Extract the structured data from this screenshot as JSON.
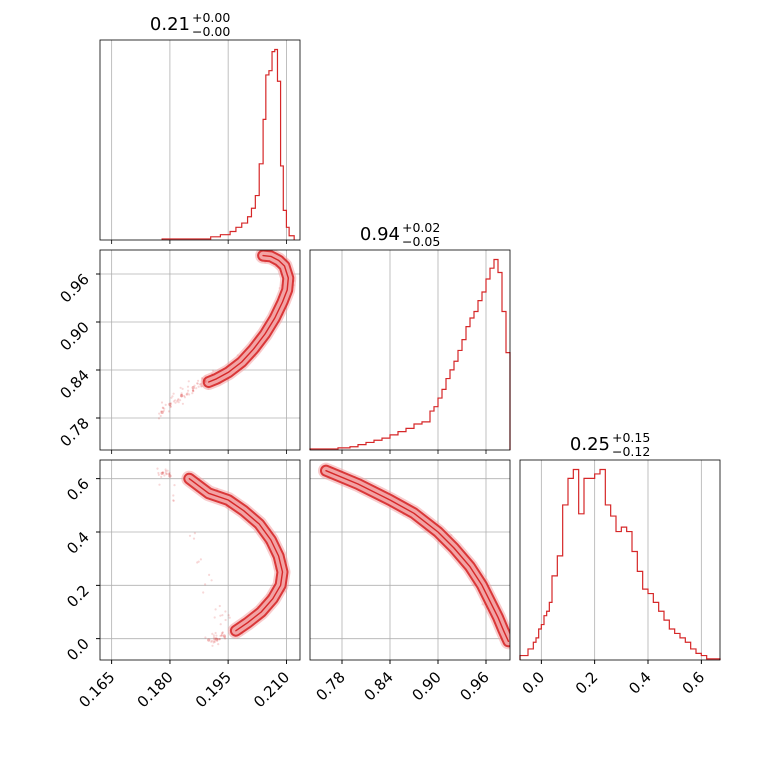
{
  "colors": {
    "accent": "#d62728",
    "fill_light": "#f2a3a4",
    "grid": "#b0b0b0"
  },
  "chart_data": {
    "type": "corner",
    "parameters": [
      {
        "id": "p0",
        "title": {
          "median": "0.21",
          "plus": "+0.00",
          "minus": "−0.00"
        },
        "range": [
          0.162,
          0.2135
        ],
        "ticks": [
          0.165,
          0.18,
          0.195,
          0.21
        ],
        "tick_labels": [
          "0.165",
          "0.180",
          "0.195",
          "0.210"
        ]
      },
      {
        "id": "p1",
        "title": {
          "median": "0.94",
          "plus": "+0.02",
          "minus": "−0.05"
        },
        "range": [
          0.74,
          0.99
        ],
        "ticks": [
          0.78,
          0.84,
          0.9,
          0.96
        ],
        "tick_labels": [
          "0.78",
          "0.84",
          "0.90",
          "0.96"
        ]
      },
      {
        "id": "p2",
        "title": {
          "median": "0.25",
          "plus": "+0.15",
          "minus": "−0.12"
        },
        "range": [
          -0.08,
          0.67
        ],
        "ticks": [
          0.0,
          0.2,
          0.4,
          0.6
        ],
        "tick_labels": [
          "0.0",
          "0.2",
          "0.4",
          "0.6"
        ]
      }
    ],
    "histograms": [
      {
        "param": "p0",
        "edges": [
          0.178,
          0.1905,
          0.193,
          0.1955,
          0.197,
          0.1985,
          0.2,
          0.201,
          0.202,
          0.203,
          0.204,
          0.2047,
          0.2055,
          0.2063,
          0.207,
          0.2077,
          0.2085,
          0.2092,
          0.21,
          0.2107,
          0.212
        ],
        "counts": [
          0.005,
          0.015,
          0.025,
          0.04,
          0.06,
          0.08,
          0.11,
          0.15,
          0.21,
          0.36,
          0.57,
          0.78,
          0.8,
          0.89,
          0.9,
          0.75,
          0.35,
          0.14,
          0.06,
          0.02
        ]
      },
      {
        "param": "p1",
        "edges": [
          0.74,
          0.775,
          0.79,
          0.8,
          0.81,
          0.82,
          0.83,
          0.84,
          0.85,
          0.86,
          0.87,
          0.88,
          0.89,
          0.895,
          0.9,
          0.905,
          0.91,
          0.915,
          0.92,
          0.925,
          0.93,
          0.935,
          0.94,
          0.945,
          0.95,
          0.955,
          0.96,
          0.965,
          0.97,
          0.975,
          0.98,
          0.985,
          0.99
        ],
        "counts": [
          0.005,
          0.01,
          0.015,
          0.025,
          0.035,
          0.045,
          0.055,
          0.07,
          0.085,
          0.1,
          0.12,
          0.13,
          0.18,
          0.2,
          0.24,
          0.28,
          0.33,
          0.37,
          0.41,
          0.46,
          0.51,
          0.57,
          0.61,
          0.64,
          0.69,
          0.73,
          0.79,
          0.84,
          0.88,
          0.82,
          0.64,
          0.45
        ]
      },
      {
        "param": "p2",
        "edges": [
          -0.08,
          -0.05,
          -0.03,
          -0.02,
          -0.01,
          0.0,
          0.01,
          0.02,
          0.03,
          0.04,
          0.06,
          0.08,
          0.1,
          0.12,
          0.14,
          0.16,
          0.18,
          0.2,
          0.22,
          0.24,
          0.26,
          0.28,
          0.3,
          0.32,
          0.34,
          0.36,
          0.38,
          0.4,
          0.42,
          0.44,
          0.46,
          0.48,
          0.5,
          0.52,
          0.54,
          0.56,
          0.58,
          0.6,
          0.62,
          0.67
        ],
        "counts": [
          0.02,
          0.05,
          0.08,
          0.1,
          0.14,
          0.16,
          0.2,
          0.22,
          0.26,
          0.38,
          0.47,
          0.7,
          0.82,
          0.86,
          0.66,
          0.82,
          0.82,
          0.84,
          0.86,
          0.7,
          0.65,
          0.58,
          0.6,
          0.58,
          0.49,
          0.4,
          0.32,
          0.3,
          0.26,
          0.22,
          0.18,
          0.14,
          0.12,
          0.1,
          0.08,
          0.05,
          0.03,
          0.02,
          0.005
        ]
      }
    ],
    "pairs": [
      {
        "x": "p0",
        "y": "p1",
        "band": [
          [
            0.204,
            0.983
          ],
          [
            0.206,
            0.982
          ],
          [
            0.208,
            0.977
          ],
          [
            0.2095,
            0.97
          ],
          [
            0.2105,
            0.955
          ],
          [
            0.2102,
            0.94
          ],
          [
            0.209,
            0.925
          ],
          [
            0.207,
            0.905
          ],
          [
            0.2045,
            0.885
          ],
          [
            0.2015,
            0.866
          ],
          [
            0.1985,
            0.85
          ],
          [
            0.195,
            0.837
          ],
          [
            0.192,
            0.829
          ],
          [
            0.19,
            0.825
          ]
        ],
        "tail": [
          [
            0.189,
            0.826
          ],
          [
            0.186,
            0.818
          ],
          [
            0.183,
            0.808
          ],
          [
            0.18,
            0.797
          ],
          [
            0.178,
            0.787
          ]
        ]
      },
      {
        "x": "p0",
        "y": "p2",
        "band": [
          [
            0.185,
            0.6
          ],
          [
            0.19,
            0.545
          ],
          [
            0.195,
            0.52
          ],
          [
            0.199,
            0.48
          ],
          [
            0.203,
            0.43
          ],
          [
            0.206,
            0.37
          ],
          [
            0.208,
            0.31
          ],
          [
            0.209,
            0.25
          ],
          [
            0.2085,
            0.2
          ],
          [
            0.2065,
            0.15
          ],
          [
            0.2035,
            0.1
          ],
          [
            0.2,
            0.06
          ],
          [
            0.197,
            0.03
          ]
        ],
        "tail": [
          [
            0.18,
            0.61
          ],
          [
            0.178,
            0.62
          ],
          [
            0.194,
            0.01
          ],
          [
            0.192,
            -0.002
          ],
          [
            0.19,
            -0.005
          ]
        ]
      },
      {
        "x": "p1",
        "y": "p2",
        "band": [
          [
            0.76,
            0.63
          ],
          [
            0.8,
            0.58
          ],
          [
            0.84,
            0.52
          ],
          [
            0.87,
            0.47
          ],
          [
            0.9,
            0.4
          ],
          [
            0.92,
            0.34
          ],
          [
            0.94,
            0.27
          ],
          [
            0.955,
            0.2
          ],
          [
            0.965,
            0.14
          ],
          [
            0.975,
            0.08
          ],
          [
            0.982,
            0.03
          ],
          [
            0.988,
            -0.01
          ]
        ],
        "tail": []
      }
    ]
  }
}
